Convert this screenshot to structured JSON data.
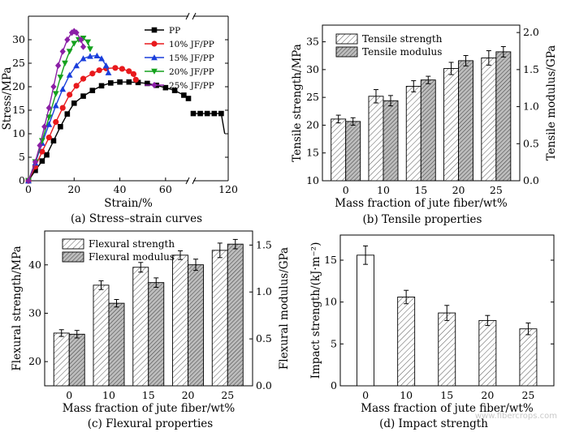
{
  "watermark": "www.fibercrops.com",
  "chart_data": [
    {
      "id": "a",
      "type": "line",
      "caption": "(a) Stress–strain curves",
      "xlabel": "Strain/%",
      "ylabel": "Stress/MPa",
      "xlim": [
        0,
        120
      ],
      "ylim": [
        0,
        35
      ],
      "xbreak": [
        70,
        110
      ],
      "xticks": [
        0,
        20,
        40,
        60,
        120
      ],
      "yticks": [
        0,
        5,
        10,
        15,
        20,
        25,
        30
      ],
      "legend_position": "top-right",
      "series": [
        {
          "name": "PP",
          "color": "#000000",
          "marker": "square",
          "x": [
            0,
            3,
            6,
            8,
            11,
            14,
            17,
            20,
            24,
            28,
            32,
            36,
            40,
            44,
            48,
            52,
            56,
            60,
            64,
            68,
            70
          ],
          "y": [
            0,
            2.2,
            4.2,
            5.5,
            8.5,
            11.5,
            14.2,
            16.5,
            18,
            19.2,
            20.2,
            20.8,
            21,
            21,
            20.9,
            20.7,
            20.3,
            19.8,
            19.2,
            18.2,
            17.5
          ]
        },
        {
          "name": "10% JF/PP",
          "color": "#e8191c",
          "marker": "circle",
          "x": [
            0,
            3,
            6,
            9,
            12,
            15,
            18,
            21,
            24,
            28,
            31,
            34,
            38,
            41,
            44,
            46,
            47
          ],
          "y": [
            0,
            3,
            6.2,
            9.2,
            12.5,
            15.5,
            18.3,
            20.2,
            21.7,
            22.8,
            23.5,
            23.9,
            24,
            23.8,
            23.3,
            22.7,
            21.5
          ]
        },
        {
          "name": "15% JF/PP",
          "color": "#1a3fdc",
          "marker": "triangle",
          "x": [
            0,
            3,
            6,
            9,
            12,
            15,
            18,
            21,
            24,
            27,
            30,
            32,
            34,
            35
          ],
          "y": [
            0,
            3.8,
            8,
            12,
            16,
            19.5,
            22.5,
            24.5,
            26,
            26.5,
            26.6,
            26,
            24.5,
            23
          ]
        },
        {
          "name": "20% JF/PP",
          "color": "#14a11d",
          "marker": "triangle-down",
          "x": [
            0,
            3,
            6,
            9,
            12,
            14,
            16,
            18,
            20,
            22,
            24,
            26,
            27
          ],
          "y": [
            0,
            4,
            8.5,
            13.5,
            18.5,
            22,
            25,
            27.5,
            29.2,
            30,
            30.3,
            29.5,
            28
          ]
        },
        {
          "name": "25% JF/PP",
          "color": "#8b1fa6",
          "marker": "diamond",
          "x": [
            0,
            3,
            5,
            7,
            9,
            11,
            13,
            15,
            17,
            19,
            20,
            21,
            23,
            24
          ],
          "y": [
            0,
            4,
            7.5,
            11.5,
            15.5,
            20,
            24.5,
            27.5,
            30,
            31.5,
            31.8,
            31.5,
            30,
            28.5
          ]
        },
        {
          "name": "",
          "color": "#000000",
          "marker": "square",
          "x": [
            110,
            112,
            114,
            116,
            118,
            119
          ],
          "y": [
            14.3,
            14.3,
            14.3,
            14.3,
            14.3,
            10
          ]
        }
      ]
    },
    {
      "id": "b",
      "type": "bar",
      "caption": "(b) Tensile properties",
      "xlabel": "Mass fraction of jute fiber/wt%",
      "ylabel": "Tensile strength/MPa",
      "ylabel_right": "Tensile modulus/GPa",
      "categories": [
        "0",
        "10",
        "15",
        "20",
        "25"
      ],
      "ylim": [
        10,
        38
      ],
      "yticks": [
        10,
        15,
        20,
        25,
        30,
        35
      ],
      "ylim_right": [
        0,
        2.1
      ],
      "yticks_right": [
        "0.0",
        "0.5",
        "1.0",
        "1.5",
        "2.0"
      ],
      "legend_position": "top-left",
      "series": [
        {
          "name": "Tensile strength",
          "axis": "left",
          "pattern": "light",
          "values": [
            21.1,
            25.2,
            27.0,
            30.2,
            32.1
          ],
          "errors": [
            0.7,
            1.2,
            1.0,
            1.1,
            1.3
          ]
        },
        {
          "name": "Tensile modulus",
          "axis": "right",
          "pattern": "dark",
          "values": [
            0.8,
            1.08,
            1.36,
            1.62,
            1.74
          ],
          "errors": [
            0.05,
            0.07,
            0.05,
            0.07,
            0.07
          ]
        }
      ]
    },
    {
      "id": "c",
      "type": "bar",
      "caption": "(c) Flexural properties",
      "xlabel": "Mass fraction of jute fiber/wt%",
      "ylabel": "Flexural strength/MPa",
      "ylabel_right": "Flexural modulus/GPa",
      "categories": [
        "0",
        "10",
        "15",
        "20",
        "25"
      ],
      "ylim": [
        15,
        47
      ],
      "yticks": [
        20,
        30,
        40
      ],
      "ylim_right": [
        0,
        1.65
      ],
      "yticks_right": [
        "0.0",
        "0.5",
        "1.0",
        "1.5"
      ],
      "legend_position": "top-left",
      "series": [
        {
          "name": "Flexural strength",
          "axis": "left",
          "pattern": "light",
          "values": [
            25.9,
            35.8,
            39.5,
            42.0,
            43.0
          ],
          "errors": [
            0.7,
            0.9,
            1.0,
            0.9,
            1.5
          ]
        },
        {
          "name": "Flexural modulus",
          "axis": "right",
          "pattern": "dark",
          "values": [
            0.55,
            0.88,
            1.1,
            1.29,
            1.51
          ],
          "errors": [
            0.04,
            0.04,
            0.05,
            0.06,
            0.05
          ]
        }
      ]
    },
    {
      "id": "d",
      "type": "bar",
      "caption": "(d) Impact strength",
      "xlabel": "Mass fraction of jute fiber/wt%",
      "ylabel": "Impact strength/(kJ·m⁻²)",
      "categories": [
        "0",
        "10",
        "15",
        "20",
        "25"
      ],
      "ylim": [
        0,
        18
      ],
      "yticks": [
        0,
        5,
        10,
        15
      ],
      "series": [
        {
          "name": "",
          "values": [
            15.6,
            10.6,
            8.7,
            7.8,
            6.8
          ],
          "errors": [
            1.1,
            0.8,
            0.9,
            0.6,
            0.7
          ],
          "patterns": [
            "none",
            "hatch",
            "hatch",
            "hatch",
            "hatch"
          ]
        }
      ]
    }
  ]
}
